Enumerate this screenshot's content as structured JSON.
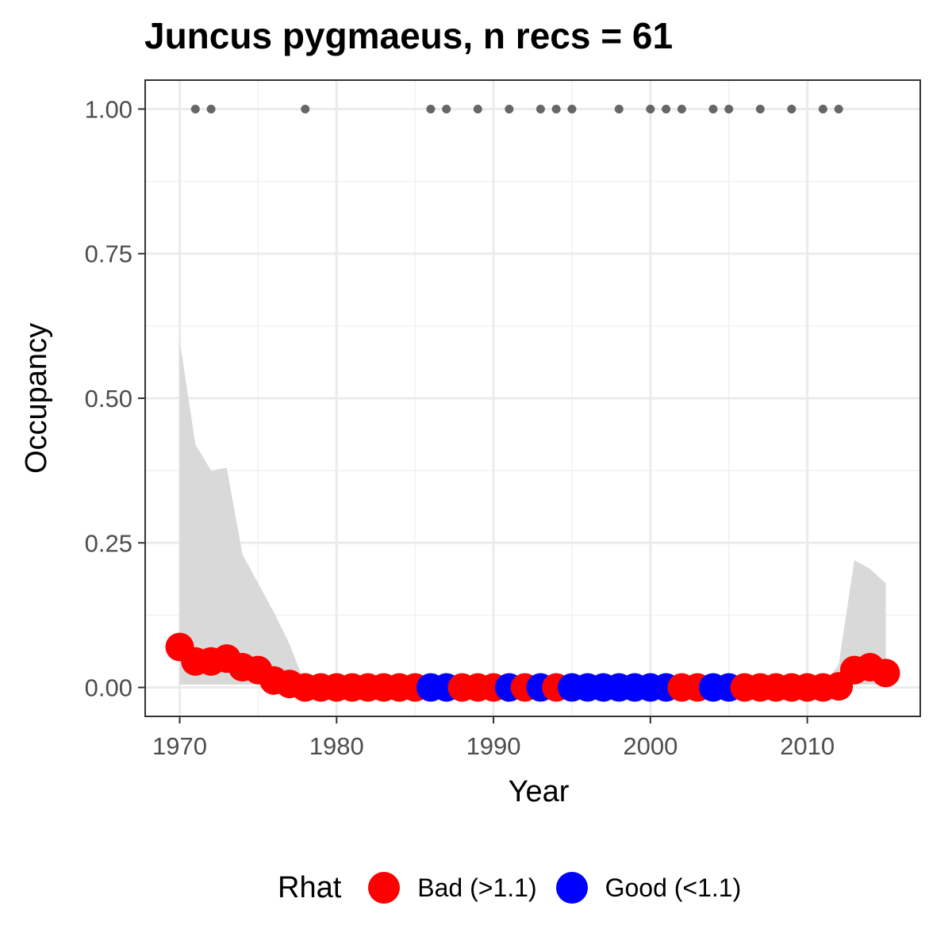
{
  "chart_data": {
    "type": "scatter",
    "title": "Juncus pygmaeus, n recs = 61",
    "xlabel": "Year",
    "ylabel": "Occupancy",
    "xlim": [
      1967.8,
      2017.2
    ],
    "ylim": [
      -0.05,
      1.05
    ],
    "x_ticks": [
      1970,
      1980,
      1990,
      2000,
      2010
    ],
    "y_ticks": [
      0,
      0.25,
      0.5,
      0.75,
      1
    ],
    "y_tick_labels": [
      "0.00",
      "0.25",
      "0.50",
      "0.75",
      "1.00"
    ],
    "grid": true,
    "legend_position": "bottom",
    "legend_title": "Rhat",
    "categories": [
      {
        "key": "bad",
        "label": "Bad (>1.1)",
        "color": "#ff0000"
      },
      {
        "key": "good",
        "label": "Good (<1.1)",
        "color": "#0000ff"
      }
    ],
    "band_color": "#d9d9d9",
    "record_point_color": "#666666",
    "occupancy": [
      {
        "year": 1970,
        "y": 0.07,
        "rhat": "bad",
        "lower": 0.005,
        "upper": 0.6
      },
      {
        "year": 1971,
        "y": 0.045,
        "rhat": "bad",
        "lower": 0.005,
        "upper": 0.42
      },
      {
        "year": 1972,
        "y": 0.045,
        "rhat": "bad",
        "lower": 0.005,
        "upper": 0.375
      },
      {
        "year": 1973,
        "y": 0.05,
        "rhat": "bad",
        "lower": 0.005,
        "upper": 0.38
      },
      {
        "year": 1974,
        "y": 0.035,
        "rhat": "bad",
        "lower": 0.005,
        "upper": 0.23
      },
      {
        "year": 1975,
        "y": 0.03,
        "rhat": "bad",
        "lower": 0.005,
        "upper": 0.18
      },
      {
        "year": 1976,
        "y": 0.012,
        "rhat": "bad",
        "lower": 0.002,
        "upper": 0.13
      },
      {
        "year": 1977,
        "y": 0.006,
        "rhat": "bad",
        "lower": 0.001,
        "upper": 0.075
      },
      {
        "year": 1978,
        "y": 0.0,
        "rhat": "bad",
        "lower": 0.0,
        "upper": 0.005
      },
      {
        "year": 1979,
        "y": 0.0,
        "rhat": "bad",
        "lower": 0.0,
        "upper": 0.0
      },
      {
        "year": 1980,
        "y": 0.0,
        "rhat": "bad",
        "lower": 0.0,
        "upper": 0.0
      },
      {
        "year": 1981,
        "y": 0.0,
        "rhat": "bad",
        "lower": 0.0,
        "upper": 0.0
      },
      {
        "year": 1982,
        "y": 0.0,
        "rhat": "bad",
        "lower": 0.0,
        "upper": 0.0
      },
      {
        "year": 1983,
        "y": 0.0,
        "rhat": "bad",
        "lower": 0.0,
        "upper": 0.0
      },
      {
        "year": 1984,
        "y": 0.0,
        "rhat": "bad",
        "lower": 0.0,
        "upper": 0.0
      },
      {
        "year": 1985,
        "y": 0.0,
        "rhat": "bad",
        "lower": 0.0,
        "upper": 0.0
      },
      {
        "year": 1986,
        "y": 0.0,
        "rhat": "good",
        "lower": 0.0,
        "upper": 0.0
      },
      {
        "year": 1987,
        "y": 0.0,
        "rhat": "good",
        "lower": 0.0,
        "upper": 0.0
      },
      {
        "year": 1988,
        "y": 0.0,
        "rhat": "bad",
        "lower": 0.0,
        "upper": 0.0
      },
      {
        "year": 1989,
        "y": 0.0,
        "rhat": "bad",
        "lower": 0.0,
        "upper": 0.0
      },
      {
        "year": 1990,
        "y": 0.0,
        "rhat": "bad",
        "lower": 0.0,
        "upper": 0.0
      },
      {
        "year": 1991,
        "y": 0.0,
        "rhat": "good",
        "lower": 0.0,
        "upper": 0.0
      },
      {
        "year": 1992,
        "y": 0.0,
        "rhat": "bad",
        "lower": 0.0,
        "upper": 0.0
      },
      {
        "year": 1993,
        "y": 0.0,
        "rhat": "good",
        "lower": 0.0,
        "upper": 0.0
      },
      {
        "year": 1994,
        "y": 0.0,
        "rhat": "bad",
        "lower": 0.0,
        "upper": 0.0
      },
      {
        "year": 1995,
        "y": 0.0,
        "rhat": "good",
        "lower": 0.0,
        "upper": 0.0
      },
      {
        "year": 1996,
        "y": 0.0,
        "rhat": "good",
        "lower": 0.0,
        "upper": 0.0
      },
      {
        "year": 1997,
        "y": 0.0,
        "rhat": "good",
        "lower": 0.0,
        "upper": 0.0
      },
      {
        "year": 1998,
        "y": 0.0,
        "rhat": "good",
        "lower": 0.0,
        "upper": 0.0
      },
      {
        "year": 1999,
        "y": 0.0,
        "rhat": "good",
        "lower": 0.0,
        "upper": 0.0
      },
      {
        "year": 2000,
        "y": 0.0,
        "rhat": "good",
        "lower": 0.0,
        "upper": 0.0
      },
      {
        "year": 2001,
        "y": 0.0,
        "rhat": "good",
        "lower": 0.0,
        "upper": 0.0
      },
      {
        "year": 2002,
        "y": 0.0,
        "rhat": "bad",
        "lower": 0.0,
        "upper": 0.0
      },
      {
        "year": 2003,
        "y": 0.0,
        "rhat": "bad",
        "lower": 0.0,
        "upper": 0.0
      },
      {
        "year": 2004,
        "y": 0.0,
        "rhat": "good",
        "lower": 0.0,
        "upper": 0.0
      },
      {
        "year": 2005,
        "y": 0.0,
        "rhat": "good",
        "lower": 0.0,
        "upper": 0.0
      },
      {
        "year": 2006,
        "y": 0.0,
        "rhat": "bad",
        "lower": 0.0,
        "upper": 0.0
      },
      {
        "year": 2007,
        "y": 0.0,
        "rhat": "bad",
        "lower": 0.0,
        "upper": 0.0
      },
      {
        "year": 2008,
        "y": 0.0,
        "rhat": "bad",
        "lower": 0.0,
        "upper": 0.0
      },
      {
        "year": 2009,
        "y": 0.0,
        "rhat": "bad",
        "lower": 0.0,
        "upper": 0.0
      },
      {
        "year": 2010,
        "y": 0.0,
        "rhat": "bad",
        "lower": 0.0,
        "upper": 0.0
      },
      {
        "year": 2011,
        "y": 0.0,
        "rhat": "bad",
        "lower": 0.0,
        "upper": 0.0
      },
      {
        "year": 2012,
        "y": 0.002,
        "rhat": "bad",
        "lower": 0.0,
        "upper": 0.04
      },
      {
        "year": 2013,
        "y": 0.03,
        "rhat": "bad",
        "lower": 0.005,
        "upper": 0.22
      },
      {
        "year": 2014,
        "y": 0.035,
        "rhat": "bad",
        "lower": 0.005,
        "upper": 0.205
      },
      {
        "year": 2015,
        "y": 0.025,
        "rhat": "bad",
        "lower": 0.005,
        "upper": 0.18
      }
    ],
    "record_years": [
      1971,
      1972,
      1978,
      1986,
      1987,
      1989,
      1991,
      1993,
      1994,
      1995,
      1998,
      2000,
      2001,
      2002,
      2004,
      2005,
      2007,
      2009,
      2011,
      2012
    ],
    "record_y": 1
  }
}
